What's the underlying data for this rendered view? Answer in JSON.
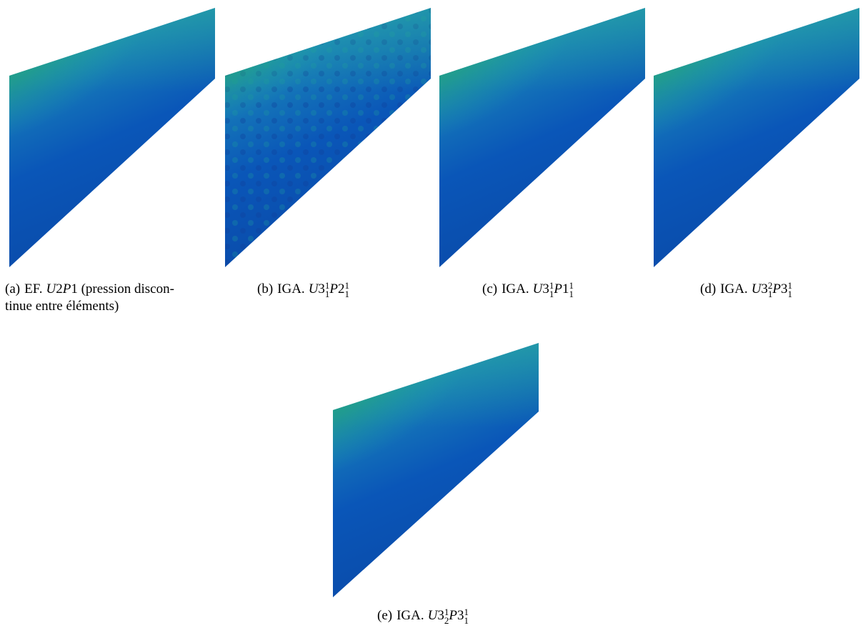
{
  "colors": {
    "deep_blue": "#00139a",
    "blue": "#0a56b8",
    "cyan_blue": "#1a86b8",
    "teal": "#1fa7a8",
    "green": "#27b045",
    "yellow": "#d6c21a",
    "red": "#c4161c",
    "dark_red": "#5a1a2e"
  },
  "panels": [
    {
      "tag": "(a)",
      "method": "EF.",
      "formula": {
        "base1": "U",
        "n1": "2",
        "base2": "P",
        "n2": "1"
      },
      "note": "(pression discon-",
      "note2": "tinue entre éléments)"
    },
    {
      "tag": "(b)",
      "method": "IGA.",
      "formula": {
        "base1": "U",
        "n1": "3",
        "sup1": "1",
        "sub1": "1",
        "base2": "P",
        "n2": "2",
        "sup2": "1",
        "sub2": "1"
      }
    },
    {
      "tag": "(c)",
      "method": "IGA.",
      "formula": {
        "base1": "U",
        "n1": "3",
        "sup1": "1",
        "sub1": "1",
        "base2": "P",
        "n2": "1",
        "sup2": "1",
        "sub2": "1"
      }
    },
    {
      "tag": "(d)",
      "method": "IGA.",
      "formula": {
        "base1": "U",
        "n1": "3",
        "sup1": "2",
        "sub1": "1",
        "base2": "P",
        "n2": "3",
        "sup2": "1",
        "sub2": "1"
      }
    },
    {
      "tag": "(e)",
      "method": "IGA.",
      "formula": {
        "base1": "U",
        "n1": "3",
        "sup1": "1",
        "sub1": "2",
        "base2": "P",
        "n2": "3",
        "sup2": "1",
        "sub2": "1"
      }
    }
  ]
}
